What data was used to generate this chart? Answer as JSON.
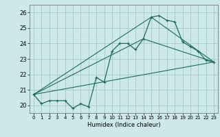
{
  "title": "",
  "xlabel": "Humidex (Indice chaleur)",
  "background_color": "#cce8e8",
  "grid_color": "#aacccc",
  "line_color": "#1a6b5a",
  "xlim": [
    -0.5,
    23.5
  ],
  "ylim": [
    19.5,
    26.5
  ],
  "xticks": [
    0,
    1,
    2,
    3,
    4,
    5,
    6,
    7,
    8,
    9,
    10,
    11,
    12,
    13,
    14,
    15,
    16,
    17,
    18,
    19,
    20,
    21,
    22,
    23
  ],
  "yticks": [
    20,
    21,
    22,
    23,
    24,
    25,
    26
  ],
  "series": [
    {
      "x": [
        0,
        1,
        2,
        3,
        4,
        5,
        6,
        7,
        8,
        9,
        10,
        11,
        12,
        13,
        14,
        15,
        16,
        17,
        18,
        19,
        20,
        21,
        22,
        23
      ],
      "y": [
        20.7,
        20.1,
        20.3,
        20.3,
        20.3,
        19.8,
        20.1,
        19.9,
        21.8,
        21.5,
        23.5,
        24.0,
        24.0,
        23.6,
        24.3,
        25.7,
        25.8,
        25.5,
        25.4,
        24.1,
        23.8,
        23.5,
        22.9,
        22.8
      ]
    },
    {
      "x": [
        0,
        23
      ],
      "y": [
        20.7,
        22.8
      ]
    },
    {
      "x": [
        0,
        14,
        23
      ],
      "y": [
        20.7,
        24.3,
        22.8
      ]
    },
    {
      "x": [
        0,
        15,
        23
      ],
      "y": [
        20.7,
        25.7,
        22.8
      ]
    }
  ]
}
